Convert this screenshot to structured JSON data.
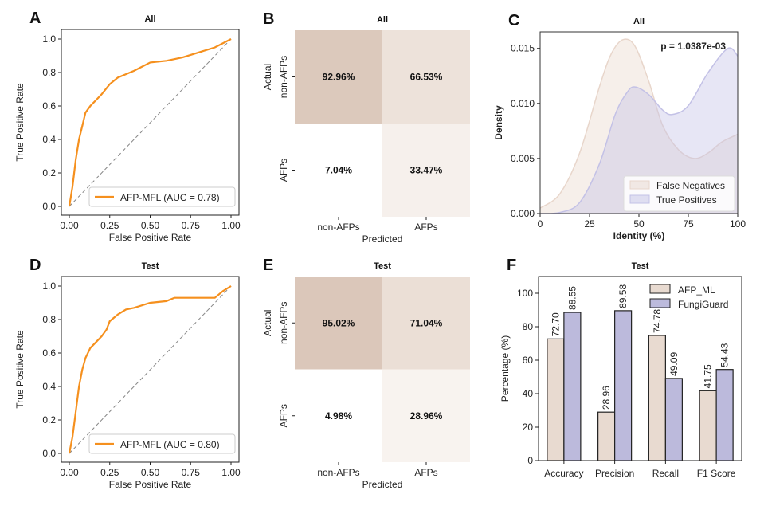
{
  "chart_data": [
    {
      "panel": "A",
      "type": "line",
      "title": "All",
      "xlabel": "False Positive Rate",
      "ylabel": "True Positive Rate",
      "xlim": [
        0,
        1
      ],
      "ylim": [
        0,
        1
      ],
      "xticks": [
        "0.00",
        "0.25",
        "0.50",
        "0.75",
        "1.00"
      ],
      "yticks": [
        "0.0",
        "0.2",
        "0.4",
        "0.6",
        "0.8",
        "1.0"
      ],
      "legend": "lower-right",
      "grid": false,
      "color": "#f5901e",
      "series": [
        {
          "name": "AFP-MFL (AUC = 0.78)",
          "x": [
            0,
            0.02,
            0.04,
            0.06,
            0.08,
            0.1,
            0.13,
            0.17,
            0.2,
            0.25,
            0.3,
            0.35,
            0.4,
            0.5,
            0.6,
            0.7,
            0.8,
            0.9,
            1
          ],
          "y": [
            0,
            0.12,
            0.28,
            0.4,
            0.48,
            0.56,
            0.6,
            0.64,
            0.67,
            0.73,
            0.77,
            0.79,
            0.81,
            0.86,
            0.87,
            0.89,
            0.92,
            0.95,
            1
          ]
        }
      ]
    },
    {
      "panel": "B",
      "type": "heatmap",
      "title": "All",
      "xlabel": "Predicted",
      "ylabel": "Actual",
      "xticks": [
        "non-AFPs",
        "AFPs"
      ],
      "yticks": [
        "non-AFPs",
        "AFPs"
      ],
      "values": [
        [
          "92.96%",
          "66.53%"
        ],
        [
          "7.04%",
          "33.47%"
        ]
      ],
      "colors": [
        [
          "#dcc9bc",
          "#ede2da"
        ],
        [
          "#ffffff",
          "#f6f0ec"
        ]
      ]
    },
    {
      "panel": "C",
      "type": "area",
      "title": "All",
      "xlabel": "Identity (%)",
      "ylabel": "Density",
      "xlim": [
        0,
        100
      ],
      "ylim": [
        0,
        0.0165
      ],
      "xticks": [
        "0",
        "25",
        "50",
        "75",
        "100"
      ],
      "yticks": [
        "0.000",
        "0.005",
        "0.010",
        "0.015"
      ],
      "annotation": "p = 1.0387e-03",
      "legend": "lower-right",
      "series": [
        {
          "name": "False Negatives",
          "color": "#e8d6cb",
          "x": [
            0,
            10,
            20,
            30,
            36,
            42,
            48,
            55,
            62,
            70,
            78,
            85,
            92,
            100
          ],
          "y": [
            0.0005,
            0.0018,
            0.0055,
            0.0115,
            0.0145,
            0.0158,
            0.0152,
            0.012,
            0.008,
            0.0058,
            0.005,
            0.0055,
            0.0065,
            0.0072
          ]
        },
        {
          "name": "True Positives",
          "color": "#c3c1e6",
          "x": [
            0,
            10,
            20,
            30,
            38,
            44,
            48,
            55,
            62,
            67,
            75,
            85,
            95,
            100
          ],
          "y": [
            0,
            0.0001,
            0.001,
            0.0045,
            0.009,
            0.011,
            0.0115,
            0.0108,
            0.0094,
            0.009,
            0.0098,
            0.0128,
            0.015,
            0.0143
          ]
        }
      ]
    },
    {
      "panel": "D",
      "type": "line",
      "title": "Test",
      "xlabel": "False Positive Rate",
      "ylabel": "True Positive Rate",
      "xlim": [
        0,
        1
      ],
      "ylim": [
        0,
        1
      ],
      "xticks": [
        "0.00",
        "0.25",
        "0.50",
        "0.75",
        "1.00"
      ],
      "yticks": [
        "0.0",
        "0.2",
        "0.4",
        "0.6",
        "0.8",
        "1.0"
      ],
      "legend": "lower-right",
      "grid": false,
      "color": "#f5901e",
      "series": [
        {
          "name": "AFP-MFL (AUC = 0.80)",
          "x": [
            0,
            0.02,
            0.04,
            0.06,
            0.08,
            0.1,
            0.13,
            0.17,
            0.2,
            0.23,
            0.25,
            0.3,
            0.35,
            0.4,
            0.5,
            0.6,
            0.65,
            0.9,
            0.95,
            1
          ],
          "y": [
            0,
            0.1,
            0.25,
            0.4,
            0.5,
            0.57,
            0.63,
            0.67,
            0.7,
            0.74,
            0.79,
            0.83,
            0.86,
            0.87,
            0.9,
            0.91,
            0.93,
            0.93,
            0.97,
            1
          ]
        }
      ]
    },
    {
      "panel": "E",
      "type": "heatmap",
      "title": "Test",
      "xlabel": "Predicted",
      "ylabel": "Actual",
      "xticks": [
        "non-AFPs",
        "AFPs"
      ],
      "yticks": [
        "non-AFPs",
        "AFPs"
      ],
      "values": [
        [
          "95.02%",
          "71.04%"
        ],
        [
          "4.98%",
          "28.96%"
        ]
      ],
      "colors": [
        [
          "#dbc7ba",
          "#ebdfd6"
        ],
        [
          "#ffffff",
          "#f8f3ef"
        ]
      ]
    },
    {
      "panel": "F",
      "type": "bar",
      "title": "Test",
      "xlabel": "",
      "ylabel": "Percentage (%)",
      "ylim": [
        0,
        110
      ],
      "yticks": [
        "0",
        "20",
        "40",
        "60",
        "80",
        "100"
      ],
      "legend": "top-right",
      "categories": [
        "Accuracy",
        "Precision",
        "Recall",
        "F1 Score"
      ],
      "series": [
        {
          "name": "AFP_ML",
          "color": "#e8dad0",
          "values": [
            72.7,
            28.96,
            74.78,
            41.75
          ],
          "labels": [
            "72.70",
            "28.96",
            "74.78",
            "41.75"
          ]
        },
        {
          "name": "FungiGuard",
          "color": "#bcbadc",
          "values": [
            88.55,
            89.58,
            49.09,
            54.43
          ],
          "labels": [
            "88.55",
            "89.58",
            "49.09",
            "54.43"
          ]
        }
      ]
    }
  ]
}
